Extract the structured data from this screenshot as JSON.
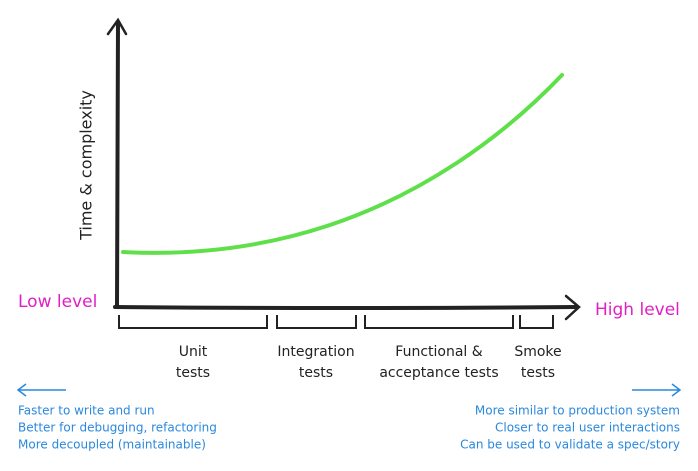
{
  "axes": {
    "y_label": "Time & complexity",
    "x_low": "Low level",
    "x_high": "High level"
  },
  "groups": [
    {
      "lines": [
        "Unit",
        "tests"
      ]
    },
    {
      "lines": [
        "Integration",
        "tests"
      ]
    },
    {
      "lines": [
        "Functional &",
        "acceptance tests"
      ]
    },
    {
      "lines": [
        "Smoke",
        "tests"
      ]
    }
  ],
  "left_notes": [
    "Faster to write and run",
    "Better for debugging, refactoring",
    "More decoupled (maintainable)"
  ],
  "right_notes": [
    "More similar to production system",
    "Closer to real user interactions",
    "Can be used to validate a spec/story"
  ]
}
